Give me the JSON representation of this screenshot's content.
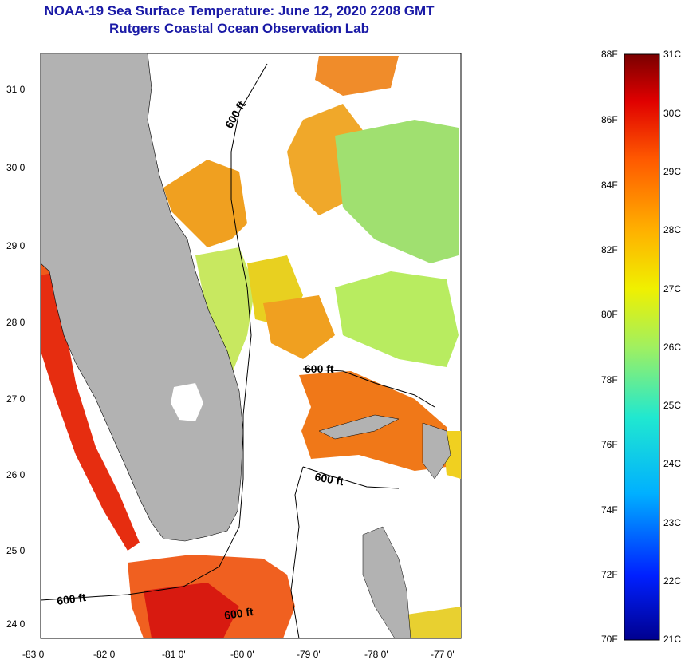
{
  "title": {
    "line1": "NOAA-19 Sea Surface Temperature:  June 12, 2020 2208 GMT",
    "line2": "Rutgers Coastal Ocean Observation Lab"
  },
  "map": {
    "lon_range": [
      -83,
      -76.85
    ],
    "lat_range": [
      23.8,
      31.45
    ],
    "lon_ticks": [
      "-83 0'",
      "-82 0'",
      "-81 0'",
      "-80 0'",
      "-79 0'",
      "-78 0'",
      "-77 0'"
    ],
    "lat_ticks": [
      "24 0'",
      "25 0'",
      "26 0'",
      "27 0'",
      "28 0'",
      "29 0'",
      "30 0'",
      "31 0'"
    ],
    "contour_label": "600 ft",
    "land_color": "#b2b2b2",
    "cloud_color": "#ffffff"
  },
  "colorbar": {
    "f_labels": [
      "88F",
      "86F",
      "84F",
      "82F",
      "80F",
      "78F",
      "76F",
      "74F",
      "72F",
      "70F"
    ],
    "c_labels": [
      "31C",
      "30C",
      "29C",
      "28C",
      "27C",
      "26C",
      "25C",
      "24C",
      "23C",
      "22C",
      "21C"
    ],
    "stops": [
      "#00008f",
      "#0020ff",
      "#00b0ff",
      "#20e8d0",
      "#a0f060",
      "#f0f000",
      "#ffb000",
      "#ff5a00",
      "#e00000",
      "#7a0000"
    ]
  }
}
